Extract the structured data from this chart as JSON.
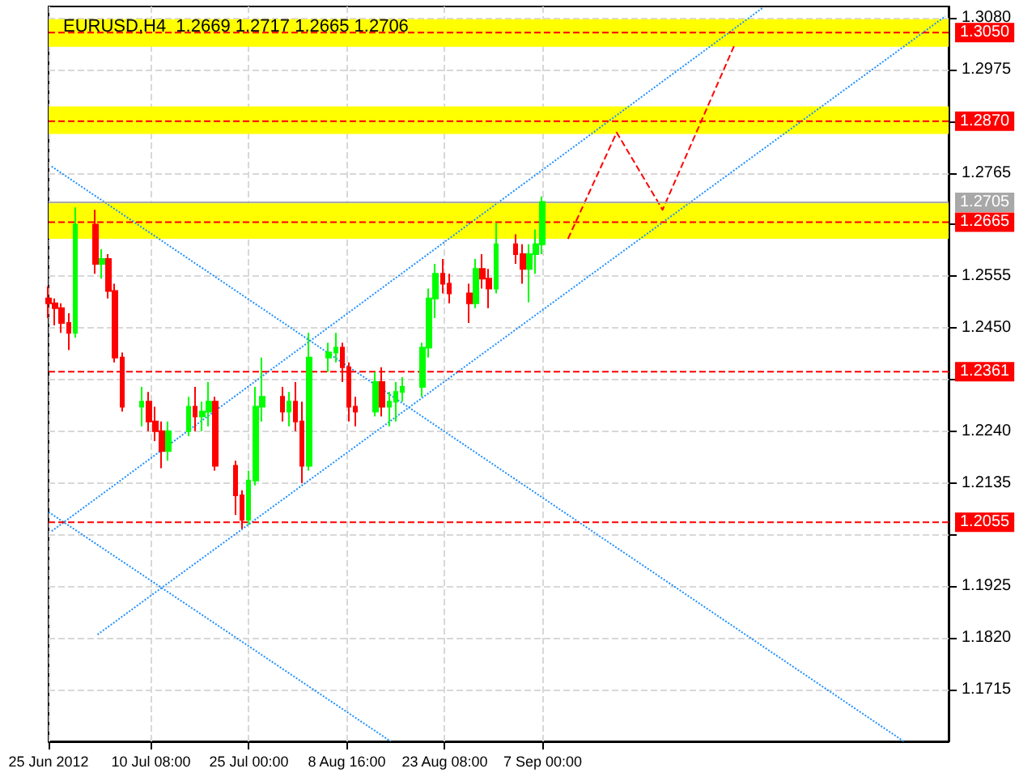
{
  "chart_data": {
    "type": "candlestick",
    "title": "EURUSD,H4  1.2669 1.2717 1.2665 1.2706",
    "x": [
      "2012-06-25",
      "2012-06-26",
      "2012-06-27",
      "2012-06-28",
      "2012-06-29",
      "2012-07-02",
      "2012-07-03",
      "2012-07-04",
      "2012-07-05",
      "2012-07-06",
      "2012-07-09",
      "2012-07-10",
      "2012-07-11",
      "2012-07-12",
      "2012-07-13",
      "2012-07-16",
      "2012-07-17",
      "2012-07-18",
      "2012-07-19",
      "2012-07-20",
      "2012-07-23",
      "2012-07-24",
      "2012-07-25",
      "2012-07-26",
      "2012-07-27",
      "2012-07-30",
      "2012-07-31",
      "2012-08-01",
      "2012-08-02",
      "2012-08-03",
      "2012-08-06",
      "2012-08-07",
      "2012-08-08",
      "2012-08-09",
      "2012-08-10",
      "2012-08-13",
      "2012-08-14",
      "2012-08-15",
      "2012-08-16",
      "2012-08-17",
      "2012-08-20",
      "2012-08-21",
      "2012-08-22",
      "2012-08-23",
      "2012-08-24",
      "2012-08-27",
      "2012-08-28",
      "2012-08-29",
      "2012-08-30",
      "2012-08-31",
      "2012-09-03",
      "2012-09-04",
      "2012-09-05",
      "2012-09-06",
      "2012-09-07"
    ],
    "ohlc": [
      [
        1.251,
        1.2535,
        1.247,
        1.25
      ],
      [
        1.25,
        1.251,
        1.2455,
        1.249
      ],
      [
        1.249,
        1.25,
        1.244,
        1.246
      ],
      [
        1.246,
        1.248,
        1.2405,
        1.244
      ],
      [
        1.244,
        1.2695,
        1.243,
        1.266
      ],
      [
        1.266,
        1.269,
        1.256,
        1.258
      ],
      [
        1.258,
        1.261,
        1.255,
        1.259
      ],
      [
        1.259,
        1.26,
        1.251,
        1.2525
      ],
      [
        1.2525,
        1.254,
        1.238,
        1.239
      ],
      [
        1.239,
        1.24,
        1.228,
        1.229
      ],
      [
        1.229,
        1.233,
        1.225,
        1.23
      ],
      [
        1.23,
        1.232,
        1.224,
        1.226
      ],
      [
        1.226,
        1.229,
        1.222,
        1.224
      ],
      [
        1.224,
        1.226,
        1.2165,
        1.22
      ],
      [
        1.22,
        1.226,
        1.218,
        1.224
      ],
      [
        1.224,
        1.231,
        1.223,
        1.229
      ],
      [
        1.229,
        1.233,
        1.224,
        1.227
      ],
      [
        1.227,
        1.23,
        1.224,
        1.228
      ],
      [
        1.228,
        1.234,
        1.225,
        1.23
      ],
      [
        1.23,
        1.231,
        1.216,
        1.217
      ],
      [
        1.217,
        1.218,
        1.207,
        1.211
      ],
      [
        1.211,
        1.212,
        1.2042,
        1.206
      ],
      [
        1.206,
        1.216,
        1.205,
        1.214
      ],
      [
        1.214,
        1.233,
        1.213,
        1.229
      ],
      [
        1.229,
        1.239,
        1.226,
        1.231
      ],
      [
        1.231,
        1.233,
        1.226,
        1.228
      ],
      [
        1.228,
        1.232,
        1.225,
        1.23
      ],
      [
        1.23,
        1.234,
        1.224,
        1.226
      ],
      [
        1.226,
        1.23,
        1.2135,
        1.217
      ],
      [
        1.217,
        1.244,
        1.216,
        1.239
      ],
      [
        1.239,
        1.242,
        1.236,
        1.24
      ],
      [
        1.24,
        1.244,
        1.238,
        1.241
      ],
      [
        1.241,
        1.242,
        1.234,
        1.237
      ],
      [
        1.237,
        1.238,
        1.226,
        1.229
      ],
      [
        1.229,
        1.231,
        1.225,
        1.228
      ],
      [
        1.228,
        1.236,
        1.227,
        1.234
      ],
      [
        1.234,
        1.237,
        1.227,
        1.229
      ],
      [
        1.229,
        1.232,
        1.225,
        1.23
      ],
      [
        1.23,
        1.234,
        1.226,
        1.232
      ],
      [
        1.232,
        1.235,
        1.23,
        1.233
      ],
      [
        1.233,
        1.242,
        1.231,
        1.241
      ],
      [
        1.241,
        1.253,
        1.239,
        1.251
      ],
      [
        1.251,
        1.258,
        1.247,
        1.256
      ],
      [
        1.256,
        1.259,
        1.252,
        1.254
      ],
      [
        1.254,
        1.256,
        1.25,
        1.252
      ],
      [
        1.252,
        1.254,
        1.246,
        1.25
      ],
      [
        1.25,
        1.259,
        1.249,
        1.257
      ],
      [
        1.257,
        1.26,
        1.253,
        1.255
      ],
      [
        1.255,
        1.257,
        1.249,
        1.253
      ],
      [
        1.253,
        1.2663,
        1.252,
        1.262
      ],
      [
        1.262,
        1.264,
        1.258,
        1.26
      ],
      [
        1.26,
        1.262,
        1.254,
        1.257
      ],
      [
        1.257,
        1.262,
        1.2502,
        1.26
      ],
      [
        1.26,
        1.265,
        1.256,
        1.262
      ],
      [
        1.262,
        1.2717,
        1.26,
        1.2706
      ]
    ],
    "colors": [
      "#ff0000",
      "#ff0000",
      "#ff0000",
      "#ff0000",
      "#00ff00",
      "#ff0000",
      "#00ff00",
      "#ff0000",
      "#ff0000",
      "#ff0000",
      "#00ff00",
      "#ff0000",
      "#ff0000",
      "#ff0000",
      "#00ff00",
      "#00ff00",
      "#ff0000",
      "#00ff00",
      "#00ff00",
      "#ff0000",
      "#ff0000",
      "#ff0000",
      "#00ff00",
      "#00ff00",
      "#00ff00",
      "#ff0000",
      "#00ff00",
      "#ff0000",
      "#ff0000",
      "#00ff00",
      "#00ff00",
      "#00ff00",
      "#ff0000",
      "#ff0000",
      "#ff0000",
      "#00ff00",
      "#ff0000",
      "#00ff00",
      "#00ff00",
      "#00ff00",
      "#00ff00",
      "#00ff00",
      "#00ff00",
      "#ff0000",
      "#ff0000",
      "#ff0000",
      "#00ff00",
      "#ff0000",
      "#ff0000",
      "#00ff00",
      "#ff0000",
      "#ff0000",
      "#00ff00",
      "#00ff00",
      "#00ff00"
    ],
    "series": [
      {
        "type": "line",
        "color": "#1e90ff",
        "line_style": "dotted",
        "x": [
          "2012-06-25T11:00",
          "2012-10-31T02:00"
        ],
        "values": [
          1.2778,
          1.161
        ]
      },
      {
        "type": "line",
        "color": "#1e90ff",
        "line_style": "dotted",
        "x": [
          "2012-06-25T00:00",
          "2012-08-15T06:00"
        ],
        "values": [
          1.2076,
          1.161
        ]
      },
      {
        "type": "line",
        "color": "#1e90ff",
        "line_style": "dotted",
        "x": [
          "2012-07-02T08:00",
          "2012-11-06T07:00"
        ],
        "values": [
          1.1827,
          1.3083
        ]
      },
      {
        "type": "line",
        "color": "#1e90ff",
        "line_style": "dotted",
        "x": [
          "2012-06-25T11:00",
          "2012-10-09T22:00"
        ],
        "values": [
          1.2037,
          1.31
        ]
      },
      {
        "type": "line",
        "color": "#ff0000",
        "line_style": "dashed",
        "x": [
          "2012-09-10T19:00",
          "2012-09-18T02:00",
          "2012-09-24T23:00",
          "2012-10-05T17:00"
        ],
        "values": [
          1.2631,
          1.2847,
          1.269,
          1.3024
        ]
      }
    ],
    "marker": "none",
    "xlim": [
      "2012-06-25",
      "2012-11-06T19:00"
    ],
    "xticks": [
      {
        "value": "2012-06-25",
        "label": "25 Jun 2012"
      },
      {
        "value": "2012-07-10T08:00",
        "label": "10 Jul 08:00"
      },
      {
        "value": "2012-07-25",
        "label": "25 Jul 00:00"
      },
      {
        "value": "2012-08-08T16:00",
        "label": "8 Aug 16:00"
      },
      {
        "value": "2012-08-23T08:00",
        "label": "23 Aug 08:00"
      },
      {
        "value": "2012-09-07",
        "label": "7 Sep 00:00"
      }
    ],
    "ylim": [
      1.161,
      1.3103
    ],
    "yticks": [
      {
        "value": 1.1715,
        "label": "1.1715"
      },
      {
        "value": 1.182,
        "label": "1.1820"
      },
      {
        "value": 1.1925,
        "label": "1.1925"
      },
      {
        "value": 1.203,
        "label": null
      },
      {
        "value": 1.2135,
        "label": "1.2135"
      },
      {
        "value": 1.224,
        "label": "1.2240"
      },
      {
        "value": 1.2345,
        "label": null
      },
      {
        "value": 1.245,
        "label": "1.2450"
      },
      {
        "value": 1.2555,
        "label": "1.2555"
      },
      {
        "value": 1.266,
        "label": null
      },
      {
        "value": 1.2765,
        "label": "1.2765"
      },
      {
        "value": 1.287,
        "label": null
      },
      {
        "value": 1.2975,
        "label": "1.2975"
      },
      {
        "value": 1.308,
        "label": "1.3080"
      }
    ],
    "ref_lines": [
      {
        "axis": "y",
        "value": 1.305,
        "label": "1.3050",
        "color": "#ff0000",
        "line_style": "dashed"
      },
      {
        "axis": "y",
        "value": 1.287,
        "label": "1.2870",
        "color": "#ff0000",
        "line_style": "dashed"
      },
      {
        "axis": "y",
        "value": 1.2705,
        "label": "1.2705",
        "color": "#a8a8a8",
        "line_style": "solid"
      },
      {
        "axis": "y",
        "value": 1.2665,
        "label": "1.2665",
        "color": "#ff0000",
        "line_style": "dashed"
      },
      {
        "axis": "y",
        "value": 1.2361,
        "label": "1.2361",
        "color": "#ff0000",
        "line_style": "dashed"
      },
      {
        "axis": "y",
        "value": 1.2055,
        "label": "1.2055",
        "color": "#ff0000",
        "line_style": "dashed"
      }
    ],
    "bands": [
      {
        "axis": "y",
        "from": 1.3021,
        "to": 1.3077,
        "color": "#ffff00"
      },
      {
        "axis": "y",
        "from": 1.2844,
        "to": 1.29,
        "color": "#ffff00"
      },
      {
        "axis": "y",
        "from": 1.2631,
        "to": 1.2703,
        "color": "#ffff00"
      }
    ],
    "grid": true
  }
}
